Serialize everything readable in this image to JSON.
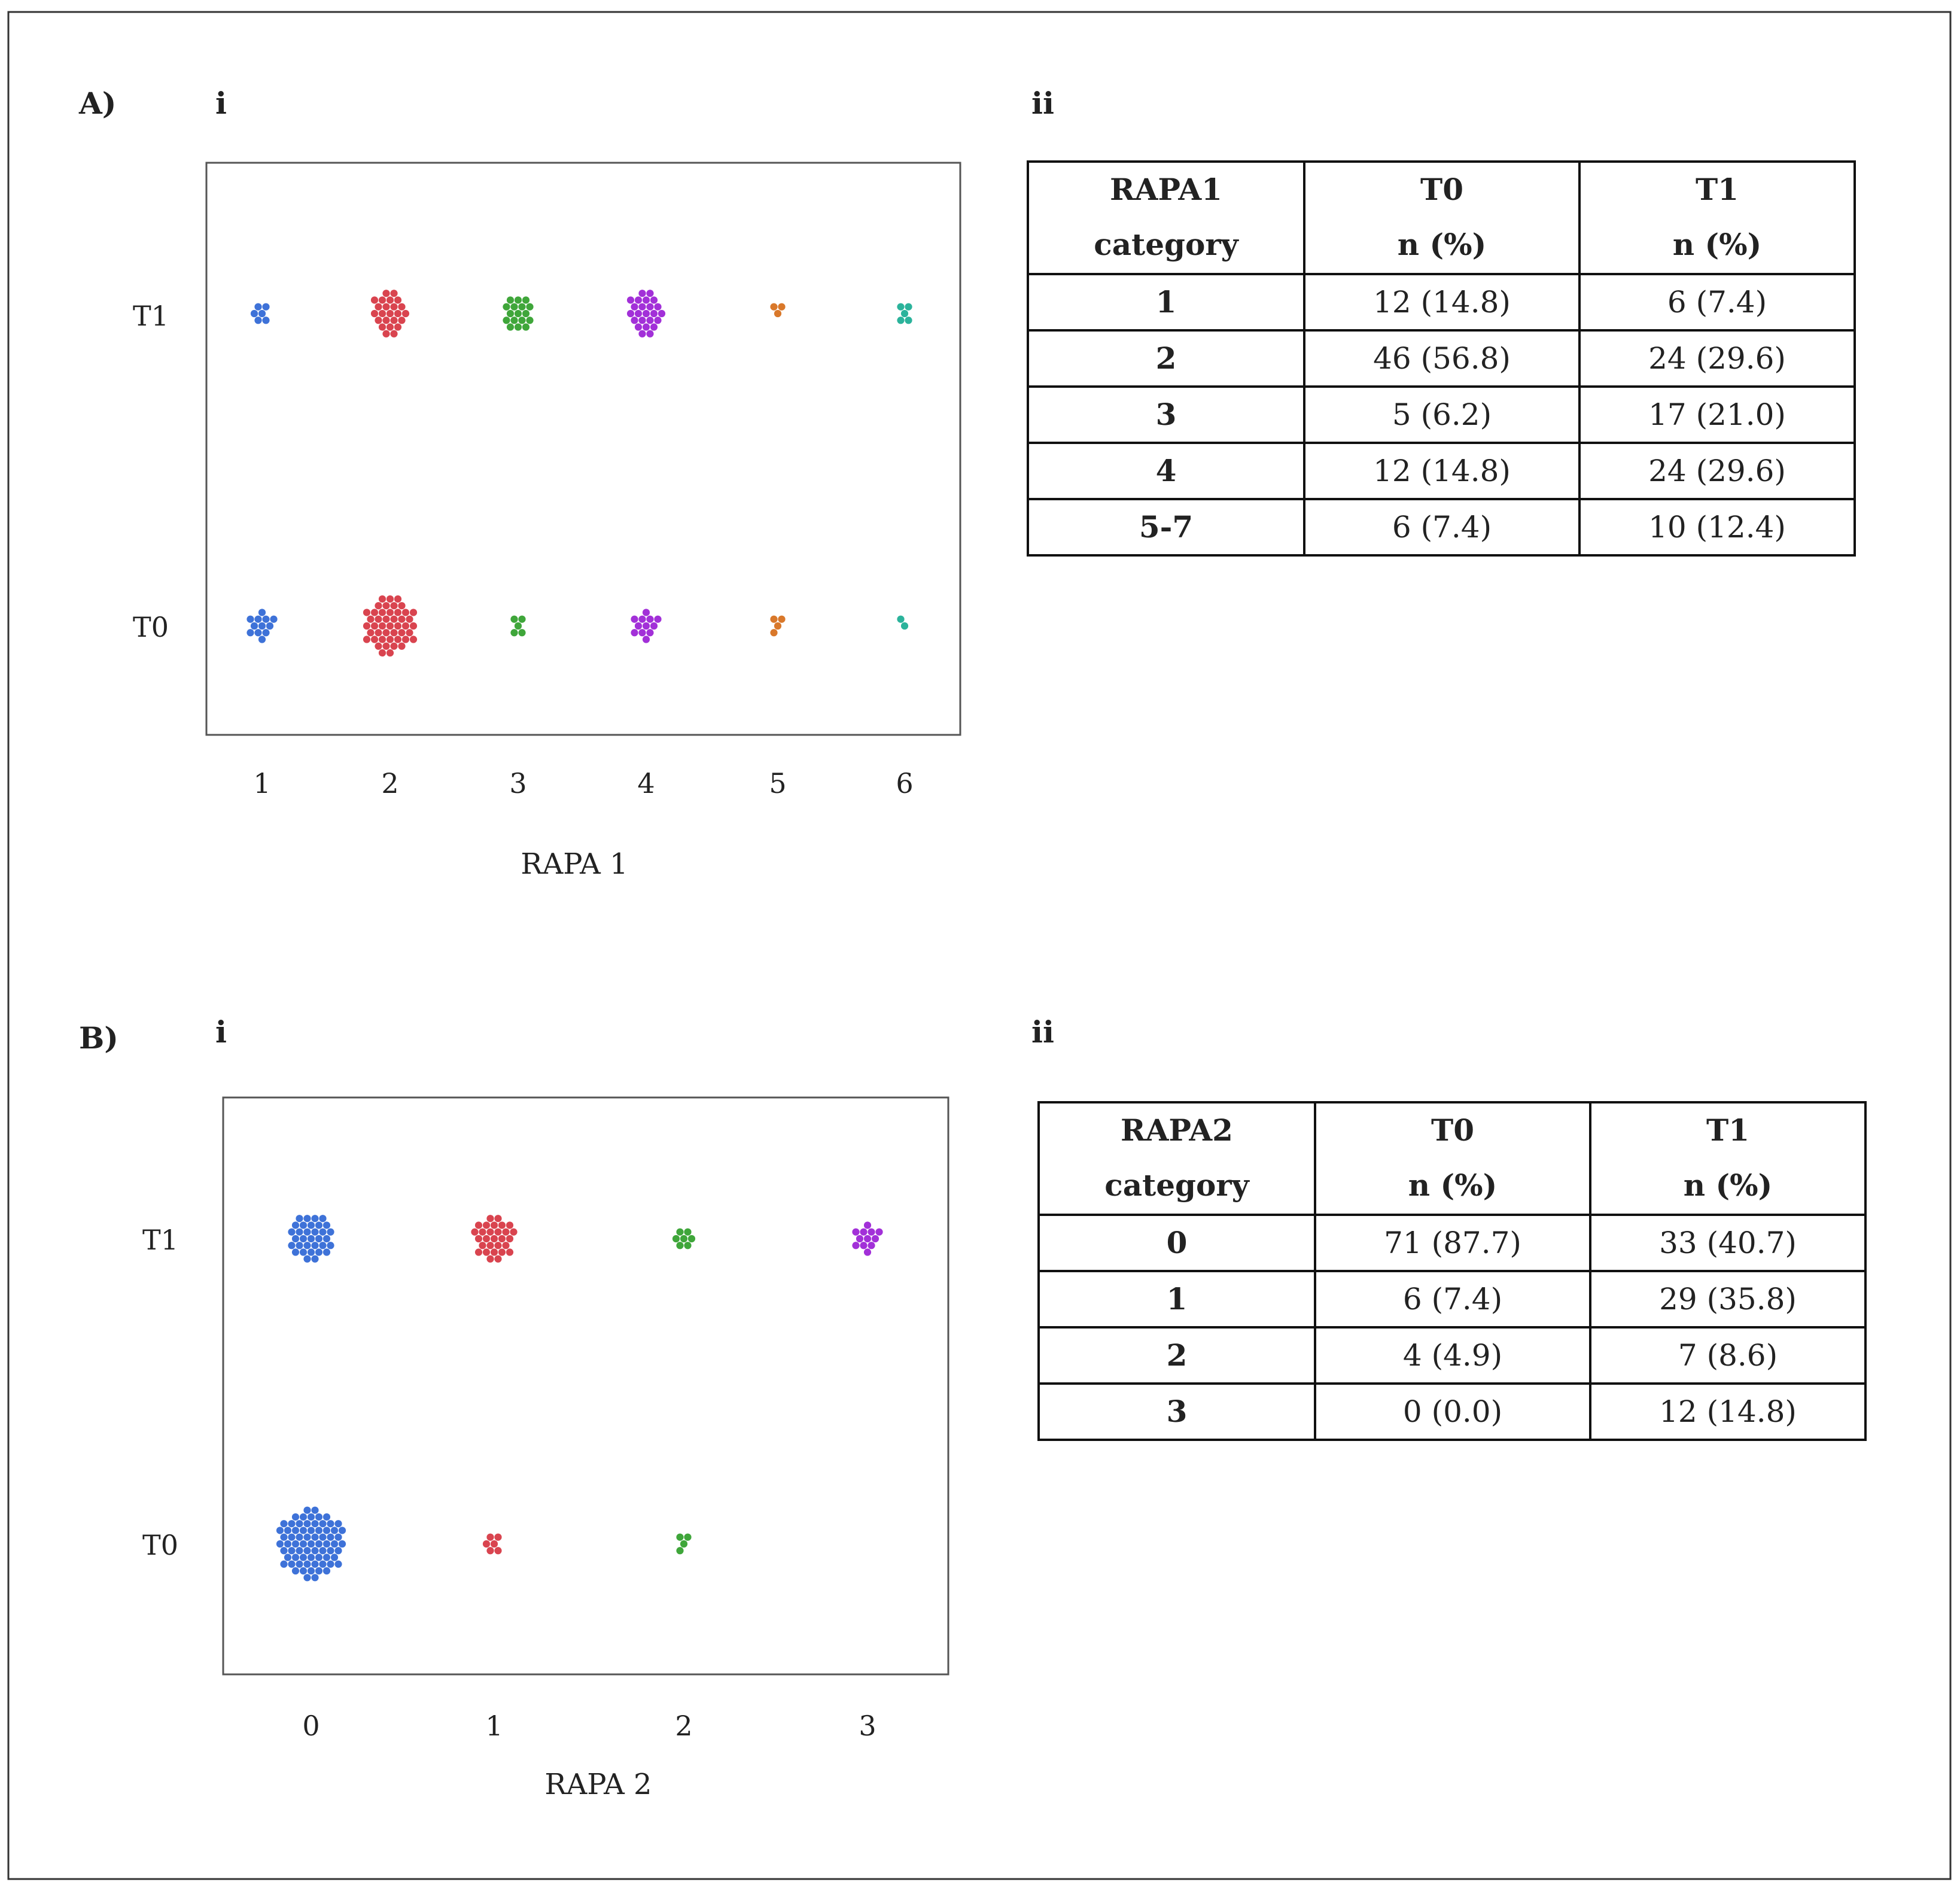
{
  "colors": {
    "blue": "#3e72d8",
    "red": "#d9444f",
    "green": "#3fa63a",
    "purple": "#a230d8",
    "orange": "#d9782a",
    "teal": "#2bb39b"
  },
  "panels": {
    "A": {
      "label": "A)",
      "left_label": "i",
      "right_label": "ii"
    },
    "B": {
      "label": "B)",
      "left_label": "i",
      "right_label": "ii"
    }
  },
  "chart_data": [
    {
      "type": "scatter",
      "style": "beeswarm",
      "title": "",
      "xlabel": "RAPA 1",
      "ylabel": "",
      "x_categories": [
        "1",
        "2",
        "3",
        "4",
        "5",
        "6"
      ],
      "y_categories": [
        "T0",
        "T1"
      ],
      "series": [
        {
          "name": "T0",
          "counts": [
            12,
            46,
            5,
            12,
            4,
            2
          ]
        },
        {
          "name": "T1",
          "counts": [
            6,
            24,
            17,
            24,
            3,
            5
          ]
        }
      ],
      "point_colors": [
        "blue",
        "red",
        "green",
        "purple",
        "orange",
        "teal"
      ]
    },
    {
      "type": "scatter",
      "style": "beeswarm",
      "title": "",
      "xlabel": "RAPA 2",
      "ylabel": "",
      "x_categories": [
        "0",
        "1",
        "2",
        "3"
      ],
      "y_categories": [
        "T0",
        "T1"
      ],
      "series": [
        {
          "name": "T0",
          "counts": [
            71,
            6,
            4,
            0
          ]
        },
        {
          "name": "T1",
          "counts": [
            33,
            29,
            7,
            12
          ]
        }
      ],
      "point_colors": [
        "blue",
        "red",
        "green",
        "purple"
      ]
    },
    {
      "type": "table",
      "columns": [
        [
          "RAPA1",
          "category"
        ],
        [
          "T0",
          "n (%)"
        ],
        [
          "T1",
          "n (%)"
        ]
      ],
      "rows": [
        [
          "1",
          "12 (14.8)",
          "6 (7.4)"
        ],
        [
          "2",
          "46 (56.8)",
          "24 (29.6)"
        ],
        [
          "3",
          "5 (6.2)",
          "17 (21.0)"
        ],
        [
          "4",
          "12 (14.8)",
          "24 (29.6)"
        ],
        [
          "5-7",
          "6 (7.4)",
          "10 (12.4)"
        ]
      ]
    },
    {
      "type": "table",
      "columns": [
        [
          "RAPA2",
          "category"
        ],
        [
          "T0",
          "n (%)"
        ],
        [
          "T1",
          "n (%)"
        ]
      ],
      "rows": [
        [
          "0",
          "71 (87.7)",
          "33 (40.7)"
        ],
        [
          "1",
          "6 (7.4)",
          "29 (35.8)"
        ],
        [
          "2",
          "4 (4.9)",
          "7 (8.6)"
        ],
        [
          "3",
          "0 (0.0)",
          "12 (14.8)"
        ]
      ]
    }
  ]
}
